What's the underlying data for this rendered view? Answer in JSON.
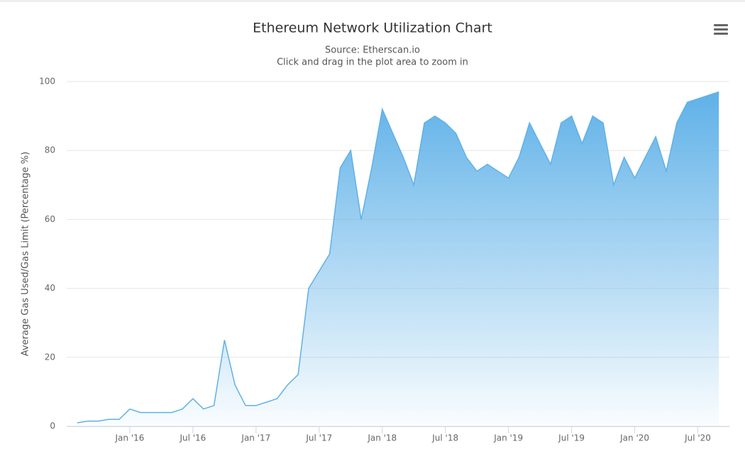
{
  "chart_data": {
    "type": "area",
    "title": "Ethereum Network Utilization Chart",
    "subtitle": [
      "Source: Etherscan.io",
      "Click and drag in the plot area to zoom in"
    ],
    "y_label": "Average Gas Used/Gas Limit (Percentage %)",
    "x": [
      "2015-08",
      "2015-09",
      "2015-10",
      "2015-11",
      "2015-12",
      "2016-01",
      "2016-02",
      "2016-03",
      "2016-04",
      "2016-05",
      "2016-06",
      "2016-07",
      "2016-08",
      "2016-09",
      "2016-10",
      "2016-11",
      "2016-12",
      "2017-01",
      "2017-02",
      "2017-03",
      "2017-04",
      "2017-05",
      "2017-06",
      "2017-07",
      "2017-08",
      "2017-09",
      "2017-10",
      "2017-11",
      "2017-12",
      "2018-01",
      "2018-02",
      "2018-03",
      "2018-04",
      "2018-05",
      "2018-06",
      "2018-07",
      "2018-08",
      "2018-09",
      "2018-10",
      "2018-11",
      "2018-12",
      "2019-01",
      "2019-02",
      "2019-03",
      "2019-04",
      "2019-05",
      "2019-06",
      "2019-07",
      "2019-08",
      "2019-09",
      "2019-10",
      "2019-11",
      "2019-12",
      "2020-01",
      "2020-02",
      "2020-03",
      "2020-04",
      "2020-05",
      "2020-06",
      "2020-07",
      "2020-08",
      "2020-09"
    ],
    "values": [
      1,
      1.5,
      1.5,
      2,
      2,
      5,
      4,
      4,
      4,
      4,
      5,
      8,
      5,
      6,
      25,
      12,
      6,
      6,
      7,
      8,
      12,
      15,
      40,
      45,
      50,
      75,
      80,
      60,
      75,
      92,
      85,
      78,
      70,
      88,
      90,
      88,
      85,
      78,
      74,
      76,
      74,
      72,
      78,
      88,
      82,
      76,
      88,
      90,
      82,
      90,
      88,
      70,
      78,
      72,
      78,
      84,
      74,
      88,
      94,
      95,
      96,
      97
    ],
    "color": "#5fb1e8",
    "xlim": [
      "2015-07",
      "2020-10"
    ],
    "xticks": [
      {
        "value": "2016-01",
        "label": "Jan '16"
      },
      {
        "value": "2016-07",
        "label": "Jul '16"
      },
      {
        "value": "2017-01",
        "label": "Jan '17"
      },
      {
        "value": "2017-07",
        "label": "Jul '17"
      },
      {
        "value": "2018-01",
        "label": "Jan '18"
      },
      {
        "value": "2018-07",
        "label": "Jul '18"
      },
      {
        "value": "2019-01",
        "label": "Jan '19"
      },
      {
        "value": "2019-07",
        "label": "Jul '19"
      },
      {
        "value": "2020-01",
        "label": "Jan '20"
      },
      {
        "value": "2020-07",
        "label": "Jul '20"
      }
    ],
    "ylim": [
      0,
      100
    ],
    "yticks": [
      0,
      20,
      40,
      60,
      80,
      100
    ],
    "grid": true
  }
}
